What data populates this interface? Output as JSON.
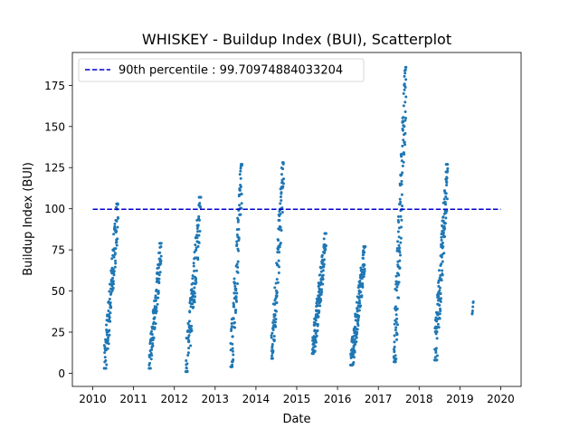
{
  "chart_data": {
    "type": "scatter",
    "title": "WHISKEY - Buildup Index (BUI), Scatterplot",
    "xlabel": "Date",
    "ylabel": "Buildup Index (BUI)",
    "xlim": [
      2009.5,
      2020.5
    ],
    "ylim": [
      -8,
      195
    ],
    "x_ticks": [
      2010,
      2011,
      2012,
      2013,
      2014,
      2015,
      2016,
      2017,
      2018,
      2019,
      2020
    ],
    "x_tick_labels": [
      "2010",
      "2011",
      "2012",
      "2013",
      "2014",
      "2015",
      "2016",
      "2017",
      "2018",
      "2019",
      "2020"
    ],
    "y_ticks": [
      0,
      25,
      50,
      75,
      100,
      125,
      150,
      175
    ],
    "y_tick_labels": [
      "0",
      "25",
      "50",
      "75",
      "100",
      "125",
      "150",
      "175"
    ],
    "point_color": "#1f77b4",
    "reference_line": {
      "label": "90th percentile : 99.70974884033204",
      "value": 99.70974884033204,
      "x_range": [
        2010,
        2020
      ],
      "color": "#0000cc",
      "style": "dashed"
    },
    "legend_position": "upper-left",
    "seasons": [
      {
        "year": 2010,
        "start": 2010.28,
        "end": 2010.62,
        "lo": 3,
        "hi": 103,
        "n": 130
      },
      {
        "year": 2011,
        "start": 2011.38,
        "end": 2011.68,
        "lo": 3,
        "hi": 79,
        "n": 110
      },
      {
        "year": 2012,
        "start": 2012.28,
        "end": 2012.65,
        "lo": 1,
        "hi": 107,
        "n": 130
      },
      {
        "year": 2013,
        "start": 2013.38,
        "end": 2013.66,
        "lo": 4,
        "hi": 127,
        "n": 110
      },
      {
        "year": 2014,
        "start": 2014.38,
        "end": 2014.68,
        "lo": 9,
        "hi": 128,
        "n": 110
      },
      {
        "year": 2015,
        "start": 2015.38,
        "end": 2015.72,
        "lo": 12,
        "hi": 85,
        "n": 150
      },
      {
        "year": 2016,
        "start": 2016.32,
        "end": 2016.68,
        "lo": 5,
        "hi": 77,
        "n": 150
      },
      {
        "year": 2017,
        "start": 2017.38,
        "end": 2017.68,
        "lo": 7,
        "hi": 186,
        "n": 140
      },
      {
        "year": 2018,
        "start": 2018.38,
        "end": 2018.7,
        "lo": 8,
        "hi": 127,
        "n": 140
      },
      {
        "year": 2019,
        "start": 2019.3,
        "end": 2019.33,
        "lo": 36,
        "hi": 44,
        "n": 6
      }
    ]
  }
}
